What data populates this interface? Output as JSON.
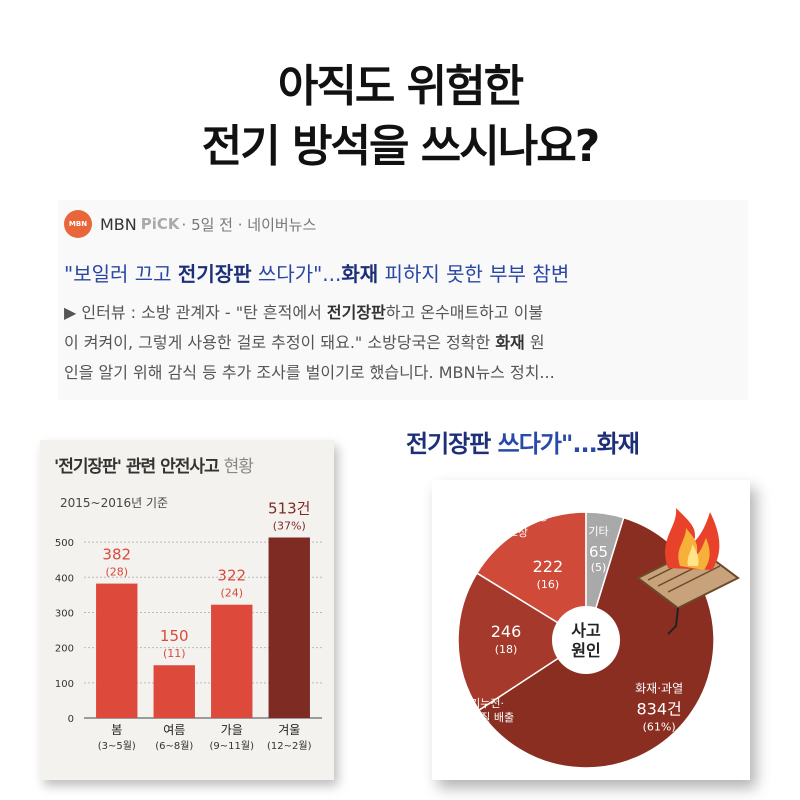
{
  "headline": {
    "line1": "아직도 위험한",
    "line2": "전기 방석을 쓰시나요?"
  },
  "news": {
    "logo_text": "MBN",
    "source_name": "MBN",
    "source_pick": "PiCK",
    "source_meta": "· 5일 전 · 네이버뉴스",
    "title_prefix": "\"보일러 끄고 ",
    "title_bold1": "전기장판",
    "title_mid": " 쓰다가\"...",
    "title_bold2": "화재",
    "title_suffix": " 피하지 못한 부부 참변",
    "body_l1a": "▶ 인터뷰 : 소방 관계자 - \"탄 흔적에서 ",
    "body_l1b": "전기장판",
    "body_l1c": "하고 온수매트하고 이불",
    "body_l2a": "이 켜켜이, 그렇게 사용한 걸로 추정이 돼요.\" 소방당국은 정확한 ",
    "body_l2b": "화재",
    "body_l2c": " 원",
    "body_l3": "인을 알기 위해 감식 등 추가 조사를 벌이기로 했습니다. MBN뉴스 정치..."
  },
  "right_title": {
    "a": "전기장판",
    "b": " 쓰다가\"...",
    "c": "화재"
  },
  "colors": {
    "bar_light": "#dd4a3c",
    "bar_dark": "#7e2b24",
    "label_red": "#d94a3a",
    "pie_dark": "#8a2e22",
    "pie_mid": "#a53a2c",
    "pie_red": "#d04a3a",
    "pie_gray": "#a9a9a9"
  },
  "chart_data": [
    {
      "type": "bar",
      "title": "'전기장판' 관련 안전사고",
      "title_suffix": "현황",
      "subtitle": "2015~2016년 기준",
      "categories": [
        "봄",
        "여름",
        "가을",
        "겨울"
      ],
      "category_sub": [
        "(3~5월)",
        "(6~8월)",
        "(9~11월)",
        "(12~2월)"
      ],
      "values": [
        382,
        150,
        322,
        513
      ],
      "value_labels": [
        "382",
        "150",
        "322",
        "513건"
      ],
      "pct_labels": [
        "(28)",
        "(11)",
        "(24)",
        "(37%)"
      ],
      "yticks": [
        0,
        100,
        200,
        300,
        400,
        500
      ],
      "ylim": [
        0,
        540
      ],
      "grid": true
    },
    {
      "type": "pie",
      "title": "",
      "center_label": [
        "사고",
        "원인"
      ],
      "slices": [
        {
          "label": "화재·과열",
          "value": 834,
          "value_label": "834건",
          "pct": "(61%)"
        },
        {
          "label": "전기누전·화학물질 배출",
          "value": 246,
          "value_label": "246",
          "pct": "(18)"
        },
        {
          "label": "제품 불량·고장",
          "value": 222,
          "value_label": "222",
          "pct": "(16)"
        },
        {
          "label": "기타",
          "value": 65,
          "value_label": "65",
          "pct": "(5)"
        }
      ],
      "slice_label_lines": {
        "fire": [
          "화재·과열"
        ],
        "leak": [
          "전기누전·",
          "화학물질 배출"
        ],
        "defect": [
          "제품 불량·",
          "고장"
        ],
        "etc": [
          "기타"
        ]
      }
    }
  ]
}
